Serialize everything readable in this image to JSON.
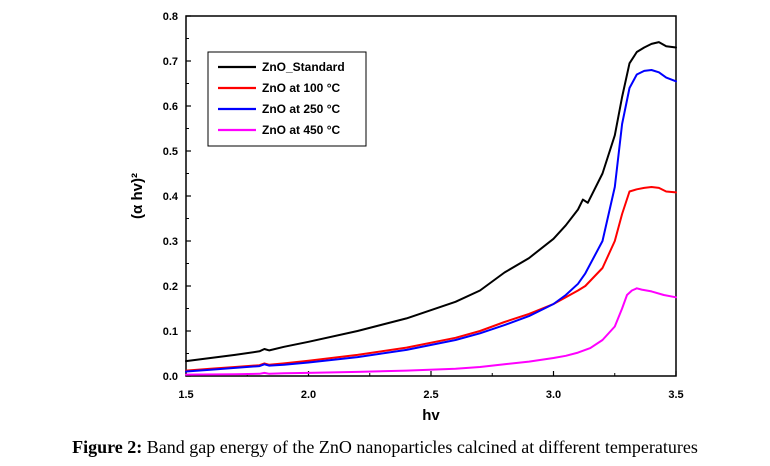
{
  "caption": {
    "label": "Figure 2:",
    "text": " Band gap energy of the ZnO nanoparticles calcined at different temperatures"
  },
  "chart_data": {
    "type": "line",
    "title": "",
    "xlabel": "hv",
    "ylabel": "(α hv)²",
    "xlim": [
      1.5,
      3.5
    ],
    "ylim": [
      0,
      0.8
    ],
    "x_ticks": [
      1.5,
      2.0,
      2.5,
      3.0,
      3.5
    ],
    "x_tick_labels": [
      "1.5",
      "2.0",
      "2.5",
      "3.0",
      "3.5"
    ],
    "y_ticks": [
      0,
      0.1,
      0.2,
      0.3,
      0.4,
      0.5,
      0.6,
      0.7,
      0.8
    ],
    "y_tick_labels": [
      "0.0",
      "0.1",
      "0.2",
      "0.3",
      "0.4",
      "0.5",
      "0.6",
      "0.7",
      "0.8"
    ],
    "grid": false,
    "legend_position": "top-left",
    "series": [
      {
        "name": "ZnO_Standard",
        "color": "#000000",
        "x": [
          1.5,
          1.6,
          1.7,
          1.8,
          1.82,
          1.84,
          1.9,
          2.0,
          2.2,
          2.4,
          2.6,
          2.7,
          2.8,
          2.9,
          3.0,
          3.05,
          3.1,
          3.12,
          3.14,
          3.2,
          3.25,
          3.28,
          3.31,
          3.34,
          3.37,
          3.4,
          3.43,
          3.46,
          3.5
        ],
        "y": [
          0.033,
          0.04,
          0.047,
          0.055,
          0.06,
          0.057,
          0.065,
          0.076,
          0.1,
          0.128,
          0.165,
          0.19,
          0.23,
          0.262,
          0.305,
          0.335,
          0.37,
          0.392,
          0.385,
          0.45,
          0.535,
          0.62,
          0.695,
          0.72,
          0.73,
          0.738,
          0.742,
          0.733,
          0.73
        ]
      },
      {
        "name": "ZnO at 100 °C",
        "color": "#ff0000",
        "x": [
          1.5,
          1.6,
          1.7,
          1.8,
          1.82,
          1.84,
          1.9,
          2.0,
          2.2,
          2.4,
          2.6,
          2.7,
          2.8,
          2.9,
          3.0,
          3.05,
          3.1,
          3.13,
          3.2,
          3.25,
          3.28,
          3.31,
          3.34,
          3.37,
          3.4,
          3.43,
          3.46,
          3.5
        ],
        "y": [
          0.012,
          0.016,
          0.02,
          0.024,
          0.028,
          0.025,
          0.028,
          0.034,
          0.047,
          0.063,
          0.085,
          0.1,
          0.12,
          0.138,
          0.16,
          0.175,
          0.19,
          0.2,
          0.24,
          0.3,
          0.36,
          0.41,
          0.415,
          0.418,
          0.42,
          0.418,
          0.41,
          0.408
        ]
      },
      {
        "name": "ZnO at 250 °C",
        "color": "#0000ff",
        "x": [
          1.5,
          1.6,
          1.7,
          1.8,
          1.82,
          1.84,
          1.9,
          2.0,
          2.2,
          2.4,
          2.6,
          2.7,
          2.8,
          2.9,
          3.0,
          3.05,
          3.1,
          3.13,
          3.2,
          3.25,
          3.28,
          3.31,
          3.34,
          3.37,
          3.4,
          3.43,
          3.46,
          3.5
        ],
        "y": [
          0.01,
          0.014,
          0.018,
          0.022,
          0.026,
          0.023,
          0.025,
          0.03,
          0.042,
          0.058,
          0.08,
          0.095,
          0.113,
          0.133,
          0.16,
          0.18,
          0.205,
          0.228,
          0.3,
          0.42,
          0.56,
          0.64,
          0.67,
          0.678,
          0.68,
          0.675,
          0.663,
          0.655
        ]
      },
      {
        "name": "ZnO at 450 °C",
        "color": "#ff00ff",
        "x": [
          1.5,
          1.7,
          1.8,
          1.82,
          1.84,
          1.9,
          2.0,
          2.2,
          2.4,
          2.6,
          2.7,
          2.8,
          2.9,
          3.0,
          3.05,
          3.1,
          3.15,
          3.2,
          3.25,
          3.28,
          3.3,
          3.32,
          3.34,
          3.36,
          3.4,
          3.45,
          3.5
        ],
        "y": [
          0.003,
          0.004,
          0.005,
          0.007,
          0.005,
          0.006,
          0.007,
          0.009,
          0.012,
          0.016,
          0.02,
          0.026,
          0.032,
          0.04,
          0.045,
          0.052,
          0.062,
          0.08,
          0.11,
          0.15,
          0.18,
          0.19,
          0.195,
          0.192,
          0.188,
          0.18,
          0.175
        ]
      }
    ]
  }
}
